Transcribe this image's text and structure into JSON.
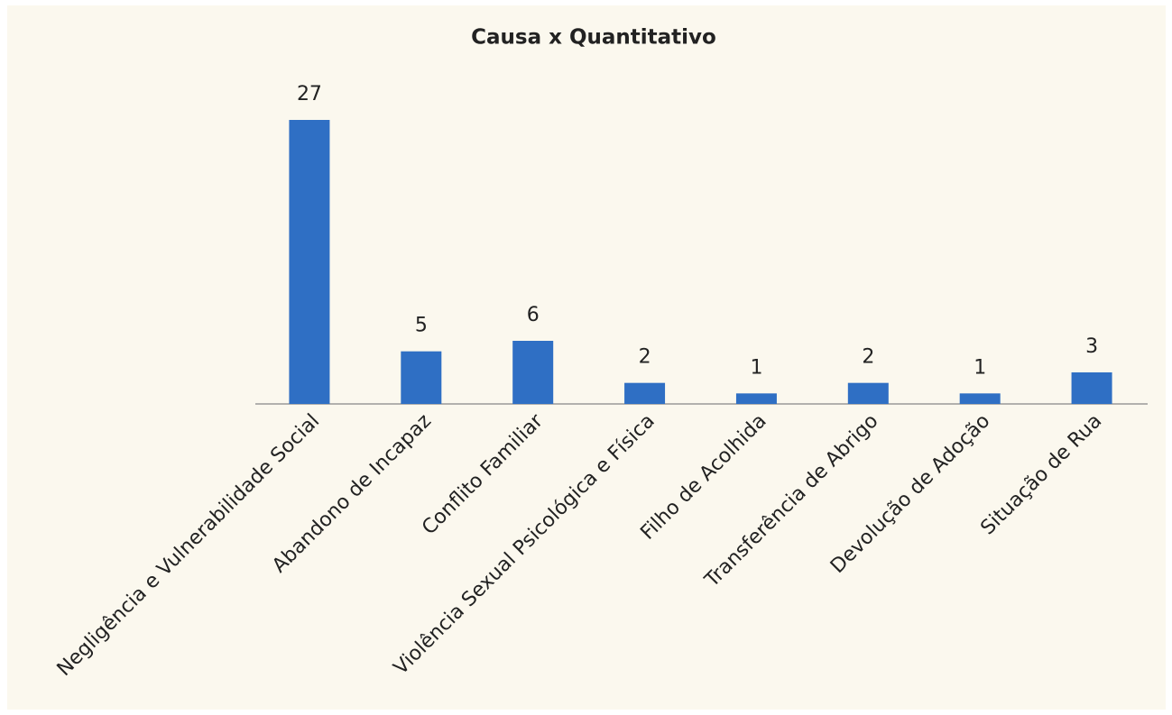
{
  "chart_data": {
    "type": "bar",
    "title": "Causa x Quantitativo",
    "categories": [
      "Negligência e Vulnerabilidade Social",
      "Abandono de Incapaz",
      "Conflito Familiar",
      "Violência Sexual Psicológica e Física",
      "Filho de Acolhida",
      "Transferência de Abrigo",
      "Devolução de Adoção",
      "Situação de Rua"
    ],
    "values": [
      27,
      5,
      6,
      2,
      1,
      2,
      1,
      3
    ],
    "color": "#2f6fc4"
  }
}
